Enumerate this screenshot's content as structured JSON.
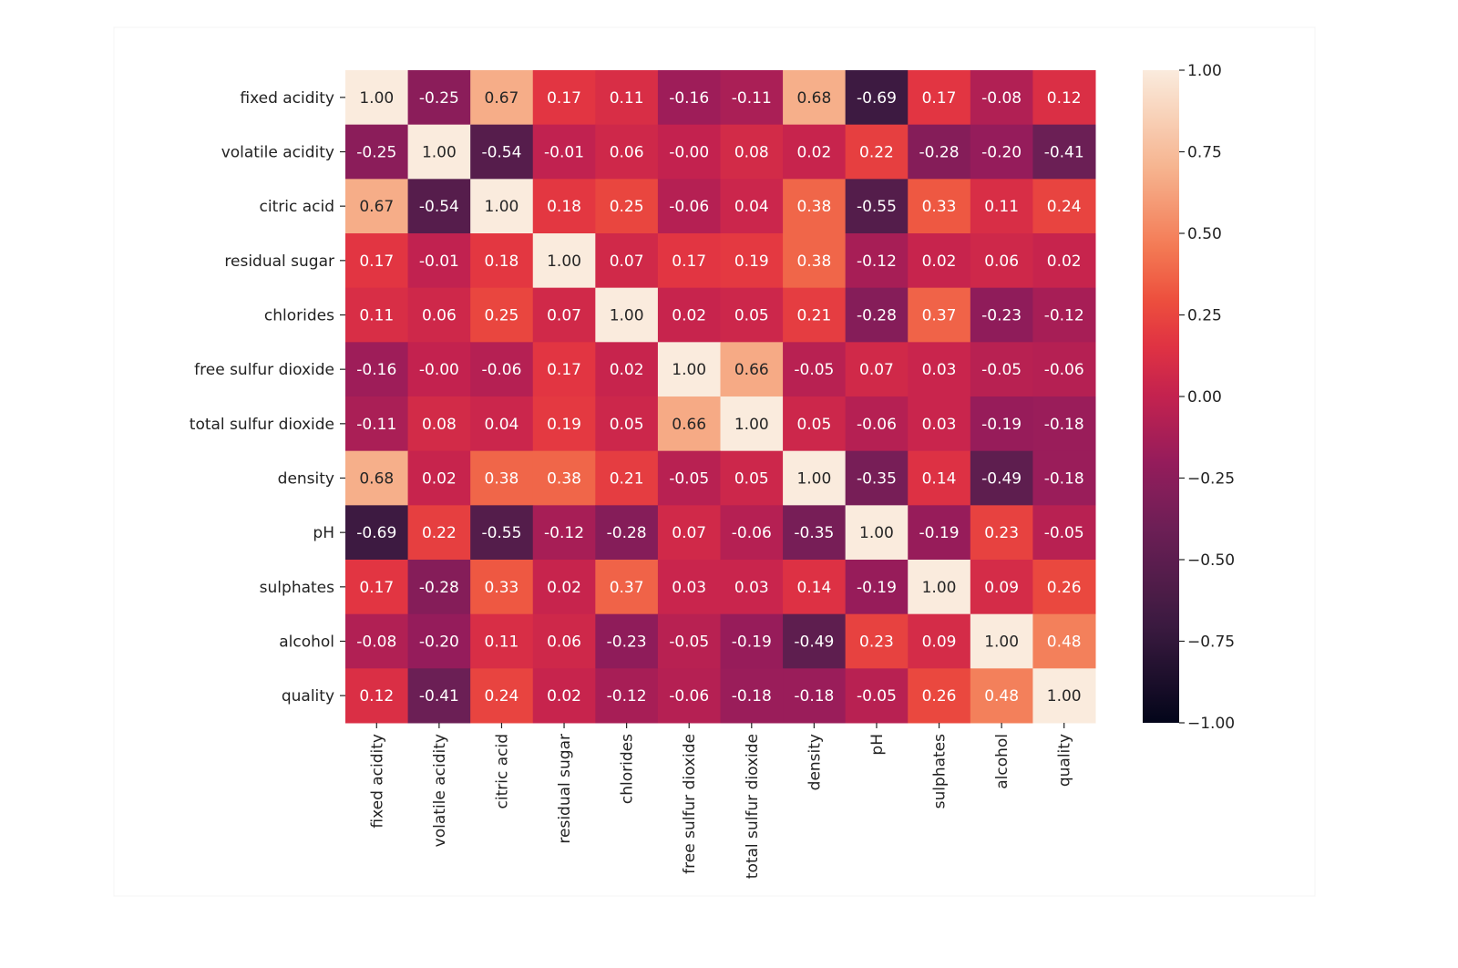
{
  "chart_data": {
    "type": "heatmap",
    "title": "",
    "xlabel": "",
    "ylabel": "",
    "labels": [
      "fixed acidity",
      "volatile acidity",
      "citric acid",
      "residual sugar",
      "chlorides",
      "free sulfur dioxide",
      "total sulfur dioxide",
      "density",
      "pH",
      "sulphates",
      "alcohol",
      "quality"
    ],
    "values": [
      [
        1.0,
        -0.25,
        0.67,
        0.17,
        0.11,
        -0.16,
        -0.11,
        0.68,
        -0.69,
        0.17,
        -0.08,
        0.12
      ],
      [
        -0.25,
        1.0,
        -0.54,
        -0.01,
        0.06,
        -0.0,
        0.08,
        0.02,
        0.22,
        -0.28,
        -0.2,
        -0.41
      ],
      [
        0.67,
        -0.54,
        1.0,
        0.18,
        0.25,
        -0.06,
        0.04,
        0.38,
        -0.55,
        0.33,
        0.11,
        0.24
      ],
      [
        0.17,
        -0.01,
        0.18,
        1.0,
        0.07,
        0.17,
        0.19,
        0.38,
        -0.12,
        0.02,
        0.06,
        0.02
      ],
      [
        0.11,
        0.06,
        0.25,
        0.07,
        1.0,
        0.02,
        0.05,
        0.21,
        -0.28,
        0.37,
        -0.23,
        -0.12
      ],
      [
        -0.16,
        -0.0,
        -0.06,
        0.17,
        0.02,
        1.0,
        0.66,
        -0.05,
        0.07,
        0.03,
        -0.05,
        -0.06
      ],
      [
        -0.11,
        0.08,
        0.04,
        0.19,
        0.05,
        0.66,
        1.0,
        0.05,
        -0.06,
        0.03,
        -0.19,
        -0.18
      ],
      [
        0.68,
        0.02,
        0.38,
        0.38,
        0.21,
        -0.05,
        0.05,
        1.0,
        -0.35,
        0.14,
        -0.49,
        -0.18
      ],
      [
        -0.69,
        0.22,
        -0.55,
        -0.12,
        -0.28,
        0.07,
        -0.06,
        -0.35,
        1.0,
        -0.19,
        0.23,
        -0.05
      ],
      [
        0.17,
        -0.28,
        0.33,
        0.02,
        0.37,
        0.03,
        0.03,
        0.14,
        -0.19,
        1.0,
        0.09,
        0.26
      ],
      [
        -0.08,
        -0.2,
        0.11,
        0.06,
        -0.23,
        -0.05,
        -0.19,
        -0.49,
        0.23,
        0.09,
        1.0,
        0.48
      ],
      [
        0.12,
        -0.41,
        0.24,
        0.02,
        -0.12,
        -0.06,
        -0.18,
        -0.18,
        -0.05,
        0.26,
        0.48,
        1.0
      ]
    ],
    "annotation_format": "0.00",
    "colormap": "rocket",
    "vmin": -1.0,
    "vmax": 1.0,
    "colorbar_ticks": [
      "1.00",
      "0.75",
      "0.50",
      "0.25",
      "0.00",
      "−0.25",
      "−0.50",
      "−0.75",
      "−1.00"
    ],
    "colorbar_tick_values": [
      1.0,
      0.75,
      0.5,
      0.25,
      0.0,
      -0.25,
      -0.5,
      -0.75,
      -1.0
    ],
    "colorbar_placement": "right",
    "grid": false
  }
}
